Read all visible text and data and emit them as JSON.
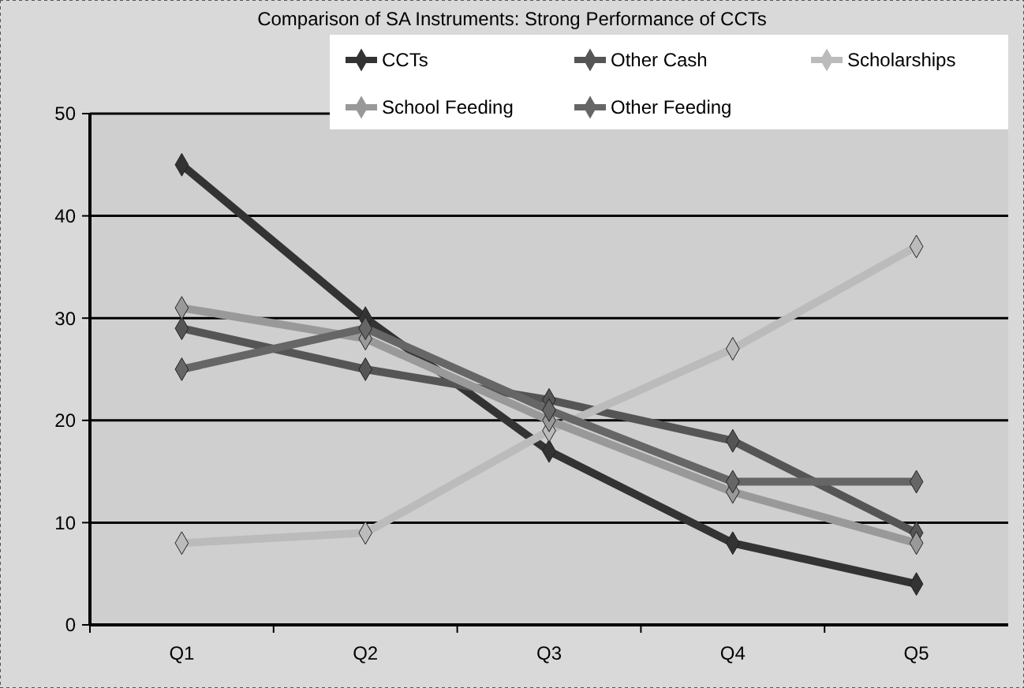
{
  "chart_data": {
    "type": "line",
    "title": "Comparison of SA Instruments: Strong Performance of CCTs",
    "categories": [
      "Q1",
      "Q2",
      "Q3",
      "Q4",
      "Q5"
    ],
    "series": [
      {
        "name": "CCTs",
        "color": "#333333",
        "values": [
          45,
          30,
          17,
          8,
          4
        ]
      },
      {
        "name": "Other Cash",
        "color": "#555555",
        "values": [
          29,
          25,
          22,
          18,
          9
        ]
      },
      {
        "name": "Scholarships",
        "color": "#bbbbbb",
        "values": [
          8,
          9,
          19,
          27,
          37
        ]
      },
      {
        "name": "School Feeding",
        "color": "#999999",
        "values": [
          31,
          28,
          20,
          13,
          8
        ]
      },
      {
        "name": "Other Feeding",
        "color": "#666666",
        "values": [
          25,
          29,
          21,
          14,
          14
        ]
      }
    ],
    "ylim": [
      0,
      50
    ],
    "yticks": [
      0,
      10,
      20,
      30,
      40,
      50
    ],
    "grid": "y",
    "legend": "top right",
    "marker": "diamond",
    "line_style": "solid"
  }
}
